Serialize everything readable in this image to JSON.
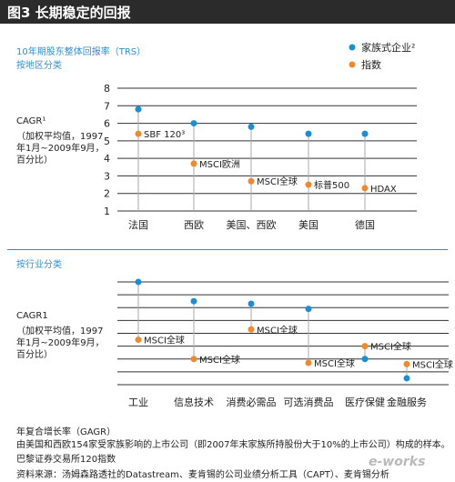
{
  "header": {
    "title": "图3 长期稳定的回报"
  },
  "top": {
    "title": "10年期股东整体回报率（TRS）",
    "subtitle": "按地区分类",
    "ylabel": [
      "CAGR¹",
      "（加权平均值，1997",
      "年1月~2009年9月，",
      "百分比）"
    ]
  },
  "legend": {
    "family": "家族式企业²",
    "index": "指数"
  },
  "bottom": {
    "subtitle": "按行业分类",
    "ylabel": [
      "CAGR1",
      "（加权平均值，1997",
      "年1月~2009年9月，",
      "百分比）"
    ]
  },
  "footer": {
    "l1": "年复合增长率（GAGR）",
    "l2": "由美国和西欧154家受家族影响的上市公司（即2007年末家族所持股份大于10%的上市公司）构成的样本。",
    "l3": "巴黎证券交易所120指数",
    "l4": "资料来源：汤姆森路透社的Datastream、麦肯锡的公司业绩分析工具（CAPT）、麦肯锡分析"
  },
  "watermark": "e-works",
  "chart_data": [
    {
      "type": "scatter",
      "categories": [
        "法国",
        "西欧",
        "美国、西欧",
        "美国",
        "德国"
      ],
      "series": [
        {
          "name": "家族式企业²",
          "color": "#1a8fd6",
          "values": [
            6.8,
            6.0,
            5.8,
            5.4,
            5.4
          ]
        },
        {
          "name": "指数",
          "color": "#f0892e",
          "values": [
            5.4,
            3.7,
            2.7,
            2.5,
            2.3
          ],
          "point_labels": [
            "SBF 120³",
            "MSCI欧洲",
            "MSCI全球",
            "标普500",
            "HDAX"
          ]
        }
      ],
      "yticks": [
        1,
        2,
        3,
        4,
        5,
        6,
        7,
        8
      ],
      "ylim": [
        1,
        8
      ],
      "grid": true
    },
    {
      "type": "scatter",
      "categories": [
        "工业",
        "信息技术",
        "消费必需品",
        "可选消费品",
        "医疗保健",
        "金融服务"
      ],
      "series": [
        {
          "name": "家族式企业²",
          "color": "#1a8fd6",
          "values": [
            8.0,
            6.5,
            6.3,
            5.9,
            2.0,
            0.5
          ]
        },
        {
          "name": "指数",
          "color": "#f0892e",
          "values": [
            3.5,
            2.0,
            4.3,
            1.7,
            3.0,
            1.6
          ],
          "point_labels": [
            "MSCI全球",
            "MSCI全球",
            "MSCI全球",
            "MSCI全球",
            "MSCI全球",
            "MSCI全球"
          ]
        }
      ],
      "grid": true
    }
  ]
}
